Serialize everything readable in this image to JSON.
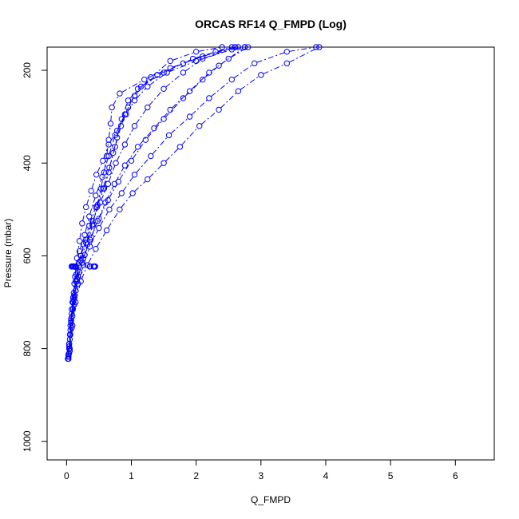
{
  "chart_data": {
    "type": "line",
    "title": "ORCAS RF14 Q_FMPD (Log)",
    "xlabel": "Q_FMPD",
    "ylabel": "Pressure (mbar)",
    "xlim": [
      -0.3,
      6.6
    ],
    "ylim": [
      1040,
      150
    ],
    "y_reversed": true,
    "x_ticks": [
      0,
      1,
      2,
      3,
      4,
      5,
      6
    ],
    "y_ticks": [
      200,
      400,
      600,
      800,
      1000
    ],
    "grid": false,
    "legend": "none",
    "color": "#0000ff",
    "marker": "open-circle",
    "line_style": "dash-dot",
    "series": [
      {
        "points": [
          [
            0.03,
            822
          ],
          [
            0.03,
            815
          ],
          [
            0.04,
            800
          ],
          [
            0.05,
            780
          ],
          [
            0.07,
            740
          ],
          [
            0.09,
            700
          ],
          [
            0.12,
            660
          ],
          [
            0.15,
            625
          ],
          [
            0.2,
            590
          ],
          [
            0.28,
            555
          ],
          [
            0.35,
            515
          ],
          [
            0.45,
            470
          ],
          [
            0.55,
            430
          ],
          [
            0.65,
            385
          ],
          [
            0.75,
            340
          ],
          [
            0.9,
            295
          ],
          [
            1.05,
            255
          ],
          [
            1.3,
            215
          ],
          [
            1.6,
            180
          ],
          [
            2.0,
            160
          ],
          [
            2.4,
            150
          ]
        ]
      },
      {
        "points": [
          [
            0.03,
            818
          ],
          [
            0.04,
            790
          ],
          [
            0.06,
            750
          ],
          [
            0.08,
            715
          ],
          [
            0.11,
            680
          ],
          [
            0.15,
            640
          ],
          [
            0.22,
            600
          ],
          [
            0.3,
            565
          ],
          [
            0.4,
            525
          ],
          [
            0.52,
            485
          ],
          [
            0.64,
            445
          ],
          [
            0.76,
            400
          ],
          [
            0.9,
            360
          ],
          [
            1.05,
            320
          ],
          [
            1.25,
            280
          ],
          [
            1.5,
            240
          ],
          [
            1.8,
            205
          ],
          [
            2.1,
            175
          ],
          [
            2.6,
            150
          ]
        ]
      },
      {
        "points": [
          [
            0.03,
            815
          ],
          [
            0.05,
            770
          ],
          [
            0.08,
            725
          ],
          [
            0.12,
            685
          ],
          [
            0.18,
            645
          ],
          [
            0.26,
            605
          ],
          [
            0.36,
            565
          ],
          [
            0.48,
            525
          ],
          [
            0.6,
            485
          ],
          [
            0.74,
            445
          ],
          [
            0.9,
            405
          ],
          [
            1.1,
            365
          ],
          [
            1.35,
            325
          ],
          [
            1.6,
            285
          ],
          [
            1.9,
            245
          ],
          [
            2.2,
            205
          ],
          [
            2.5,
            175
          ],
          [
            2.8,
            150
          ]
        ]
      },
      {
        "points": [
          [
            0.04,
            810
          ],
          [
            0.06,
            760
          ],
          [
            0.1,
            715
          ],
          [
            0.14,
            675
          ],
          [
            0.2,
            635
          ],
          [
            0.28,
            598
          ],
          [
            0.38,
            560
          ],
          [
            0.5,
            520
          ],
          [
            0.64,
            480
          ],
          [
            0.8,
            440
          ],
          [
            1.0,
            395
          ],
          [
            1.22,
            350
          ],
          [
            1.5,
            305
          ],
          [
            1.8,
            260
          ],
          [
            2.1,
            220
          ],
          [
            2.35,
            190
          ],
          [
            2.75,
            150
          ]
        ]
      },
      {
        "points": [
          [
            0.05,
            805
          ],
          [
            0.08,
            755
          ],
          [
            0.12,
            705
          ],
          [
            0.18,
            660
          ],
          [
            0.26,
            620
          ],
          [
            0.36,
            580
          ],
          [
            0.5,
            540
          ],
          [
            0.66,
            500
          ],
          [
            0.85,
            465
          ],
          [
            1.05,
            425
          ],
          [
            1.3,
            385
          ],
          [
            1.58,
            340
          ],
          [
            1.9,
            300
          ],
          [
            2.2,
            260
          ],
          [
            2.55,
            220
          ],
          [
            2.9,
            185
          ],
          [
            3.4,
            160
          ],
          [
            3.85,
            150
          ]
        ]
      },
      {
        "points": [
          [
            0.05,
            800
          ],
          [
            0.09,
            750
          ],
          [
            0.14,
            700
          ],
          [
            0.22,
            655
          ],
          [
            0.32,
            620
          ],
          [
            0.45,
            585
          ],
          [
            0.62,
            545
          ],
          [
            0.82,
            500
          ],
          [
            1.02,
            465
          ],
          [
            1.25,
            435
          ],
          [
            1.5,
            400
          ],
          [
            1.75,
            365
          ],
          [
            2.05,
            320
          ],
          [
            2.35,
            285
          ],
          [
            2.65,
            245
          ],
          [
            3.0,
            210
          ],
          [
            3.4,
            185
          ],
          [
            3.9,
            150
          ]
        ]
      },
      {
        "points": [
          [
            0.02,
            822
          ],
          [
            0.04,
            790
          ],
          [
            0.07,
            745
          ],
          [
            0.1,
            700
          ],
          [
            0.14,
            655
          ],
          [
            0.19,
            615
          ],
          [
            0.26,
            575
          ],
          [
            0.35,
            535
          ],
          [
            0.45,
            495
          ],
          [
            0.56,
            455
          ],
          [
            0.66,
            410
          ],
          [
            0.75,
            365
          ],
          [
            0.84,
            320
          ],
          [
            0.95,
            280
          ],
          [
            1.1,
            240
          ],
          [
            1.4,
            210
          ],
          [
            1.8,
            185
          ],
          [
            2.3,
            160
          ],
          [
            2.65,
            150
          ]
        ]
      },
      {
        "points": [
          [
            0.03,
            812
          ],
          [
            0.06,
            770
          ],
          [
            0.09,
            730
          ],
          [
            0.12,
            690
          ],
          [
            0.16,
            650
          ],
          [
            0.22,
            610
          ],
          [
            0.3,
            572
          ],
          [
            0.4,
            532
          ],
          [
            0.48,
            490
          ],
          [
            0.58,
            455
          ],
          [
            0.65,
            420
          ],
          [
            0.72,
            378
          ],
          [
            0.78,
            345
          ],
          [
            0.85,
            305
          ],
          [
            0.95,
            265
          ],
          [
            1.15,
            235
          ],
          [
            1.5,
            205
          ],
          [
            1.95,
            175
          ],
          [
            2.55,
            150
          ]
        ]
      },
      {
        "points": [
          [
            0.04,
            795
          ],
          [
            0.07,
            740
          ],
          [
            0.11,
            695
          ],
          [
            0.16,
            655
          ],
          [
            0.24,
            615
          ],
          [
            0.32,
            575
          ],
          [
            0.4,
            535
          ],
          [
            0.47,
            495
          ],
          [
            0.53,
            455
          ],
          [
            0.58,
            420
          ],
          [
            0.62,
            385
          ],
          [
            0.65,
            350
          ],
          [
            0.68,
            315
          ],
          [
            0.7,
            280
          ],
          [
            0.82,
            250
          ],
          [
            1.2,
            220
          ],
          [
            1.6,
            195
          ],
          [
            2.1,
            170
          ],
          [
            2.6,
            150
          ]
        ]
      },
      {
        "points": [
          [
            0.04,
            790
          ],
          [
            0.07,
            735
          ],
          [
            0.1,
            690
          ],
          [
            0.13,
            645
          ],
          [
            0.16,
            605
          ],
          [
            0.2,
            568
          ],
          [
            0.24,
            530
          ],
          [
            0.3,
            495
          ],
          [
            0.38,
            460
          ],
          [
            0.46,
            425
          ],
          [
            0.56,
            395
          ],
          [
            0.65,
            360
          ],
          [
            0.78,
            330
          ],
          [
            0.92,
            295
          ],
          [
            1.05,
            265
          ],
          [
            1.25,
            235
          ],
          [
            1.55,
            205
          ],
          [
            2.0,
            180
          ],
          [
            2.55,
            155
          ],
          [
            2.75,
            150
          ]
        ]
      }
    ],
    "annotations": [
      {
        "points": [
          [
            0.08,
            623
          ],
          [
            0.1,
            623
          ],
          [
            0.12,
            623
          ],
          [
            0.14,
            623
          ],
          [
            0.36,
            623
          ],
          [
            0.42,
            623
          ],
          [
            0.44,
            623
          ]
        ]
      }
    ]
  }
}
